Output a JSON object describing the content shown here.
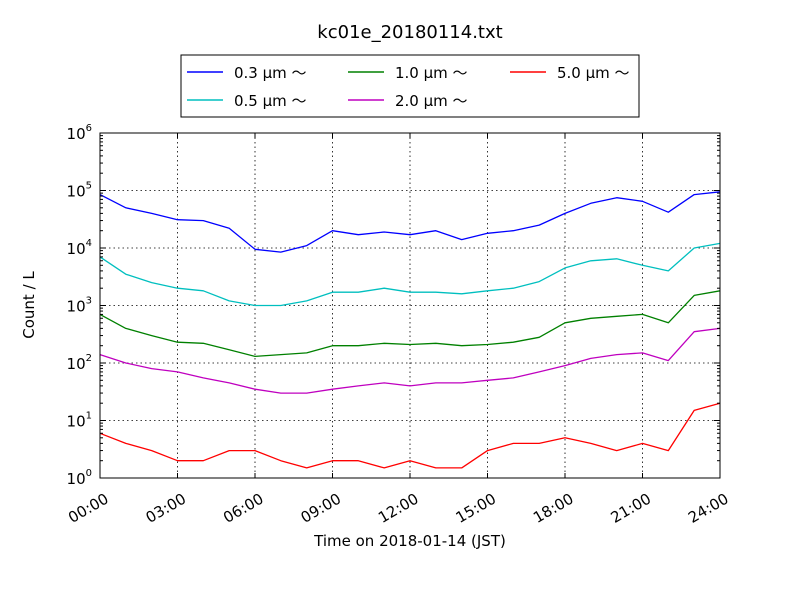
{
  "chart_data": {
    "type": "line",
    "title": "kc01e_20180114.txt",
    "xlabel": "Time on 2018-01-14 (JST)",
    "ylabel": "Count / L",
    "y_scale": "log",
    "ylim": [
      1,
      1000000
    ],
    "xlim": [
      "00:00",
      "24:00"
    ],
    "grid": true,
    "legend_position": "top-center",
    "x_tick_labels": [
      "00:00",
      "03:00",
      "06:00",
      "09:00",
      "12:00",
      "15:00",
      "18:00",
      "21:00",
      "24:00"
    ],
    "y_tick_labels": [
      {
        "base": "10",
        "exp": "0"
      },
      {
        "base": "10",
        "exp": "1"
      },
      {
        "base": "10",
        "exp": "2"
      },
      {
        "base": "10",
        "exp": "3"
      },
      {
        "base": "10",
        "exp": "4"
      },
      {
        "base": "10",
        "exp": "5"
      },
      {
        "base": "10",
        "exp": "6"
      }
    ],
    "x_hours": [
      0,
      1,
      2,
      3,
      4,
      5,
      6,
      7,
      8,
      9,
      10,
      11,
      12,
      13,
      14,
      15,
      16,
      17,
      18,
      19,
      20,
      21,
      22,
      23,
      24
    ],
    "series": [
      {
        "name": "0.3 μm ～",
        "color": "#0000ff",
        "values": [
          85000,
          50000,
          40000,
          31000,
          30000,
          22000,
          9500,
          8500,
          11000,
          20000,
          17000,
          19000,
          17000,
          20000,
          14000,
          18000,
          20000,
          25000,
          40000,
          60000,
          75000,
          65000,
          42000,
          85000,
          95000
        ]
      },
      {
        "name": "0.5 μm ～",
        "color": "#00bfbf",
        "values": [
          7000,
          3500,
          2500,
          2000,
          1800,
          1200,
          1000,
          1000,
          1200,
          1700,
          1700,
          2000,
          1700,
          1700,
          1600,
          1800,
          2000,
          2600,
          4500,
          6000,
          6500,
          5000,
          4000,
          10000,
          12000
        ]
      },
      {
        "name": "1.0 μm ～",
        "color": "#008000",
        "values": [
          700,
          400,
          300,
          230,
          220,
          170,
          130,
          140,
          150,
          200,
          200,
          220,
          210,
          220,
          200,
          210,
          230,
          280,
          500,
          600,
          650,
          700,
          500,
          1500,
          1800
        ]
      },
      {
        "name": "2.0 μm ～",
        "color": "#bf00bf",
        "values": [
          140,
          100,
          80,
          70,
          55,
          45,
          35,
          30,
          30,
          35,
          40,
          45,
          40,
          45,
          45,
          50,
          55,
          70,
          90,
          120,
          140,
          150,
          110,
          350,
          400
        ]
      },
      {
        "name": "5.0 μm ～",
        "color": "#ff0000",
        "values": [
          6,
          4,
          3,
          2,
          2,
          3,
          3,
          2,
          1.5,
          2,
          2,
          1.5,
          2,
          1.5,
          1.5,
          3,
          4,
          4,
          5,
          4,
          3,
          4,
          3,
          15,
          20
        ]
      }
    ]
  }
}
